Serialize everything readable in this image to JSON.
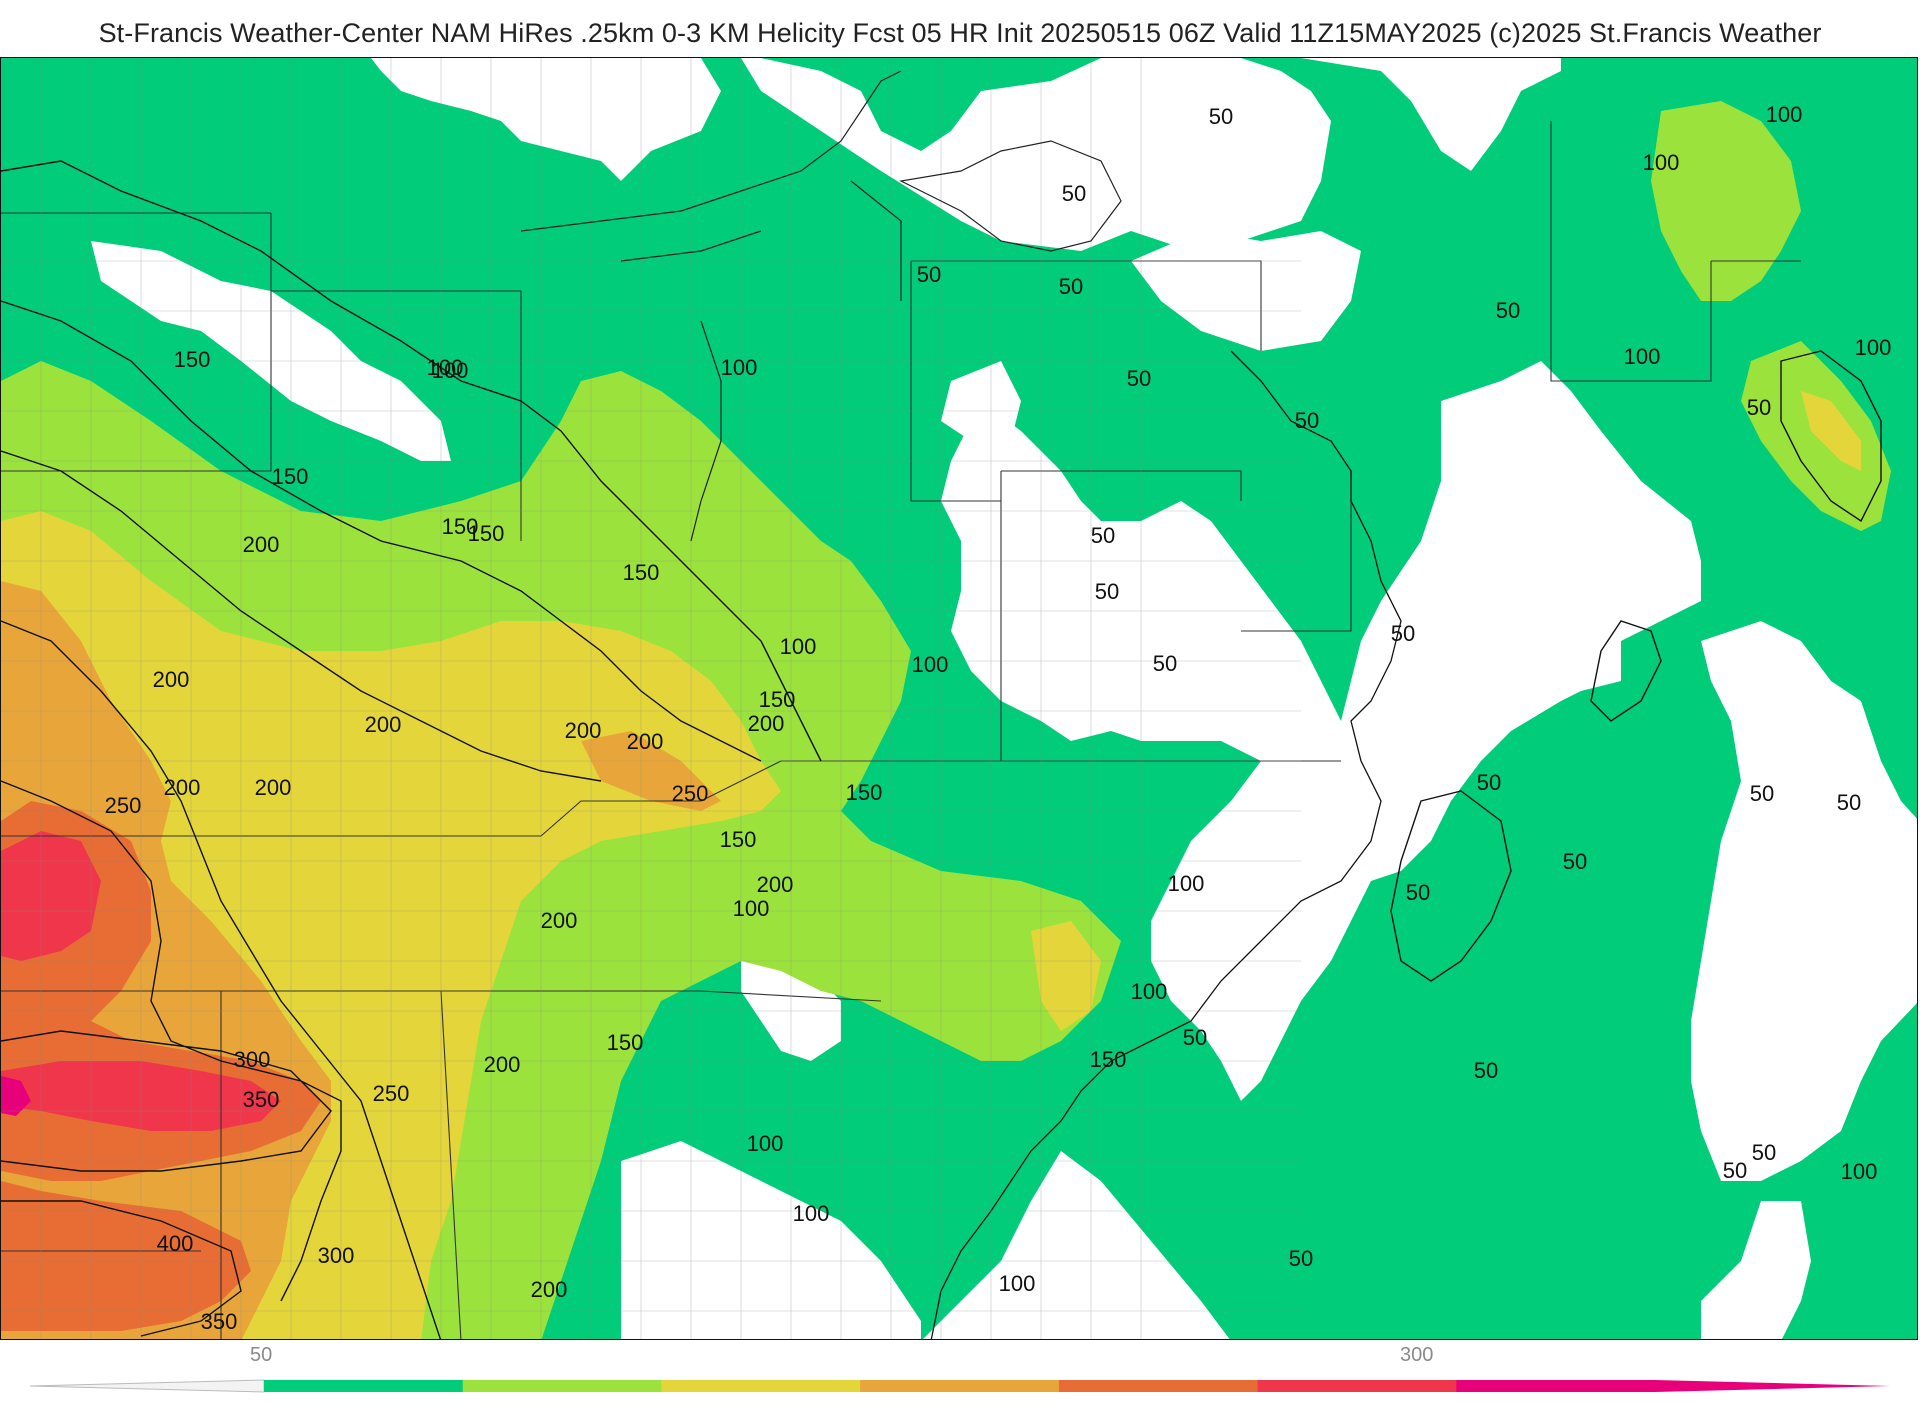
{
  "header": {
    "title": "St-Francis Weather-Center NAM HiRes .25km 0-3 KM Helicity Fcst 05 HR Init 20250515 06Z  Valid 11Z15MAY2025    (c)2025 St.Francis Weather"
  },
  "legend": {
    "tick_labels": [
      "50",
      "300"
    ],
    "colors": [
      "#00cc7a",
      "#9be33c",
      "#e4d63a",
      "#e8a63a",
      "#e76d34",
      "#f0364a",
      "#e8007a"
    ]
  },
  "contour_labels": {
    "values": [
      "50",
      "50",
      "50",
      "50",
      "50",
      "50",
      "50",
      "50",
      "50",
      "50",
      "50",
      "50",
      "50",
      "50",
      "50",
      "50",
      "50",
      "50",
      "50",
      "50",
      "50",
      "50",
      "100",
      "100",
      "100",
      "100",
      "100",
      "100",
      "100",
      "100",
      "100",
      "100",
      "100",
      "100",
      "100",
      "100",
      "100",
      "100",
      "150",
      "150",
      "150",
      "150",
      "150",
      "150",
      "150",
      "150",
      "150",
      "150",
      "200",
      "200",
      "200",
      "200",
      "200",
      "200",
      "200",
      "200",
      "200",
      "200",
      "200",
      "200",
      "250",
      "250",
      "250",
      "300",
      "300",
      "350",
      "350",
      "400"
    ]
  }
}
